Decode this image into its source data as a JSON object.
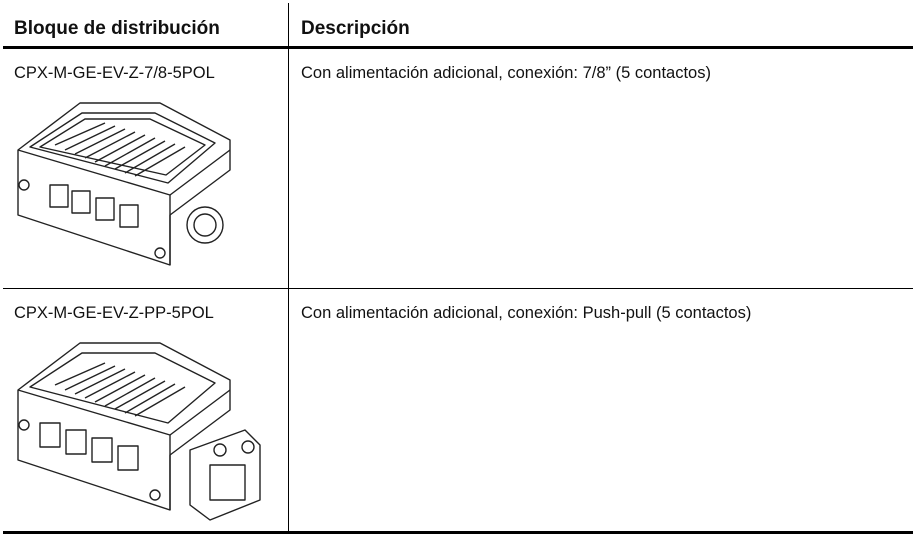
{
  "table": {
    "header": [
      "Bloque de distribución",
      "Descripción"
    ],
    "rows": [
      [
        "CPX-M-GE-EV-Z-7/8-5POL",
        "Con alimentación adicional, conexión: 7/8” (5 contactos)"
      ],
      [
        "CPX-M-GE-EV-Z-PP-5POL",
        "Con alimentación adicional, conexión: Push-pull (5 contactos)"
      ]
    ]
  }
}
